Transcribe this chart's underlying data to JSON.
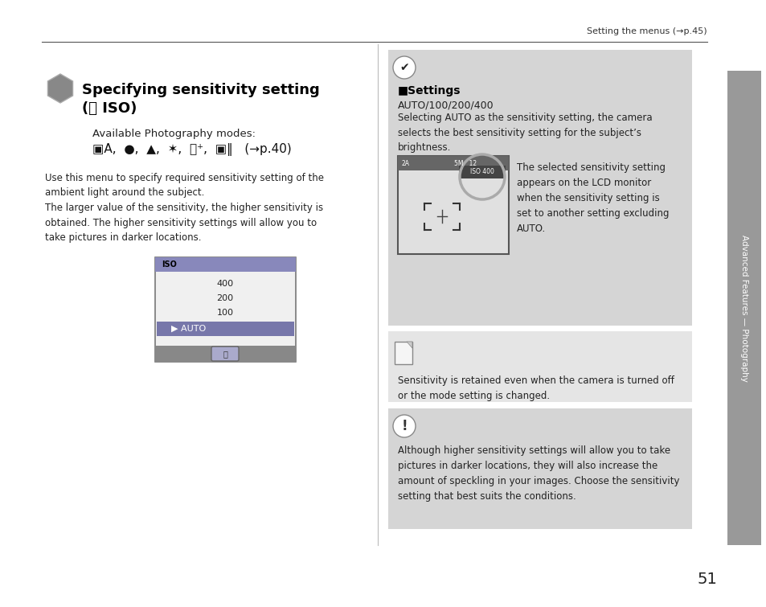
{
  "page_bg": "#ffffff",
  "header_text": "Setting the menus (→p.45)",
  "page_number": "51",
  "sidebar_color": "#999999",
  "sidebar_text": "Advanced Features — Photography",
  "title_line1": "Specifying sensitivity setting",
  "title_line2": "(⓶ ISO)",
  "avail_label": "Available Photography modes:",
  "body_text1": "Use this menu to specify required sensitivity setting of the\nambient light around the subject.\nThe larger value of the sensitivity, the higher sensitivity is\nobtained. The higher sensitivity settings will allow you to\ntake pictures in darker locations.",
  "checkmark_text": "✔",
  "settings_label": "■Settings",
  "settings_sub": "AUTO/100/200/400",
  "settings_body": "Selecting AUTO as the sensitivity setting, the camera\nselects the best sensitivity setting for the subject’s\nbrightness.",
  "lcd_text": "The selected sensitivity setting\nappears on the LCD monitor\nwhen the sensitivity setting is\nset to another setting excluding\nAUTO.",
  "note_text": "Sensitivity is retained even when the camera is turned off\nor the mode setting is changed.",
  "warning_text": "Although higher sensitivity settings will allow you to take\npictures in darker locations, they will also increase the\namount of speckling in your images. Choose the sensitivity\nsetting that best suits the conditions.",
  "panel1_bg": "#d5d5d5",
  "panel2_bg": "#e5e5e5",
  "panel3_bg": "#d5d5d5"
}
